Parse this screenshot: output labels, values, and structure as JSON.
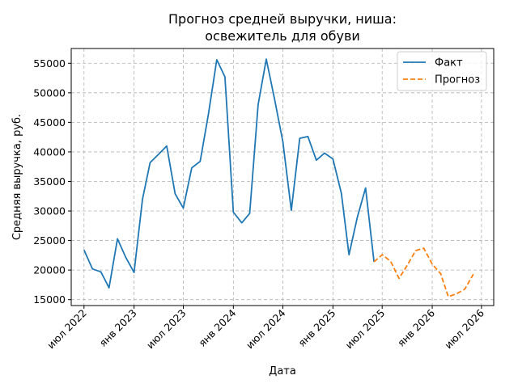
{
  "chart_data": {
    "type": "line",
    "title": "Прогноз средней выручки, ниша: освежитель для обуви",
    "title_lines": [
      "Прогноз средней выручки, ниша:",
      "освежитель для обуви"
    ],
    "xlabel": "Дата",
    "ylabel": "Средняя выручка, руб.",
    "grid": true,
    "legend_position": "top-right",
    "ylim": [
      14000,
      57500
    ],
    "xlim": [
      "2022-05-15",
      "2026-08-15"
    ],
    "y_ticks": [
      15000,
      20000,
      25000,
      30000,
      35000,
      40000,
      45000,
      50000,
      55000
    ],
    "y_tick_labels": [
      "15000",
      "20000",
      "25000",
      "30000",
      "35000",
      "40000",
      "45000",
      "50000",
      "55000"
    ],
    "x_ticks": [
      "2022-07-01",
      "2023-01-01",
      "2023-07-01",
      "2024-01-01",
      "2024-07-01",
      "2025-01-01",
      "2025-07-01",
      "2026-01-01",
      "2026-07-01"
    ],
    "x_tick_labels": [
      "июл 2022",
      "янв 2023",
      "июл 2023",
      "янв 2024",
      "июл 2024",
      "янв 2025",
      "июл 2025",
      "янв 2026",
      "июл 2026"
    ],
    "series": [
      {
        "name": "Факт",
        "color": "#1f77b4",
        "style": "solid",
        "x": [
          "2022-07-01",
          "2022-08-01",
          "2022-09-01",
          "2022-10-01",
          "2022-11-01",
          "2022-12-01",
          "2023-01-01",
          "2023-02-01",
          "2023-03-01",
          "2023-04-01",
          "2023-05-01",
          "2023-06-01",
          "2023-07-01",
          "2023-08-01",
          "2023-09-01",
          "2023-10-01",
          "2023-11-01",
          "2023-12-01",
          "2024-01-01",
          "2024-02-01",
          "2024-03-01",
          "2024-04-01",
          "2024-05-01",
          "2024-06-01",
          "2024-07-01",
          "2024-08-01",
          "2024-09-01",
          "2024-10-01",
          "2024-11-01",
          "2024-12-01",
          "2025-01-01",
          "2025-02-01",
          "2025-03-01",
          "2025-04-01",
          "2025-05-01",
          "2025-06-01"
        ],
        "values": [
          23400,
          20200,
          19700,
          17000,
          25300,
          22200,
          19600,
          32000,
          38200,
          39600,
          41000,
          32900,
          30500,
          37300,
          38400,
          46300,
          55600,
          52700,
          29800,
          28000,
          29600,
          48000,
          55700,
          48800,
          41700,
          30100,
          42300,
          42600,
          38600,
          39800,
          38800,
          33000,
          22600,
          29000,
          33900,
          21400
        ]
      },
      {
        "name": "Прогноз",
        "color": "#ff7f0e",
        "style": "dashed",
        "x": [
          "2025-06-01",
          "2025-07-01",
          "2025-08-01",
          "2025-09-01",
          "2025-10-01",
          "2025-11-01",
          "2025-12-01",
          "2026-01-01",
          "2026-02-01",
          "2026-03-01",
          "2026-04-01",
          "2026-05-01",
          "2026-06-01"
        ],
        "values": [
          21400,
          22600,
          21500,
          18600,
          20800,
          23300,
          23700,
          21000,
          19400,
          15500,
          16000,
          16800,
          19300
        ]
      }
    ]
  }
}
